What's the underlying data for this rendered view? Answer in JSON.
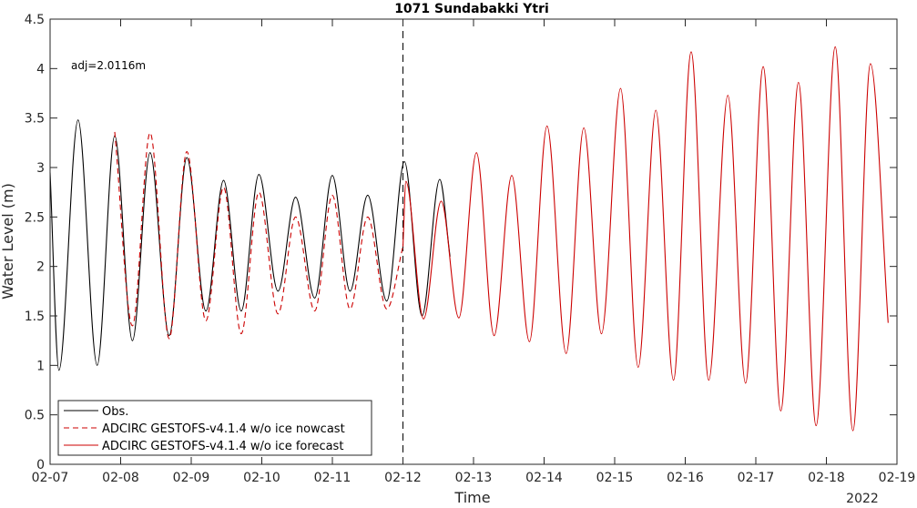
{
  "chart_data": {
    "type": "line",
    "title": "1071 Sundabakki Ytri",
    "xlabel": "Time",
    "ylabel": "Water Level (m)",
    "year_label": "2022",
    "annotation": "adj=2.0116m",
    "ylim": [
      0,
      4.5
    ],
    "yticks": [
      "0",
      "0.5",
      "1",
      "1.5",
      "2",
      "2.5",
      "3",
      "3.5",
      "4",
      "4.5"
    ],
    "xlim": [
      "02-07",
      "02-19"
    ],
    "xticks": [
      "02-07",
      "02-08",
      "02-09",
      "02-10",
      "02-11",
      "02-12",
      "02-13",
      "02-14",
      "02-15",
      "02-16",
      "02-17",
      "02-18",
      "02-19"
    ],
    "forecast_start": "02-12",
    "grid": false,
    "legend_position": "bottom-left",
    "series": [
      {
        "name": "Obs.",
        "color": "#000000",
        "style": "solid",
        "points": [
          [
            "02-07 00:00",
            2.95
          ],
          [
            "02-07 03:00",
            0.95
          ],
          [
            "02-07 09:30",
            3.48
          ],
          [
            "02-07 16:00",
            1.0
          ],
          [
            "02-07 22:00",
            3.32
          ],
          [
            "02-08 04:00",
            1.25
          ],
          [
            "02-08 10:00",
            3.15
          ],
          [
            "02-08 16:30",
            1.3
          ],
          [
            "02-08 22:30",
            3.1
          ],
          [
            "02-09 05:00",
            1.55
          ],
          [
            "02-09 11:00",
            2.87
          ],
          [
            "02-09 17:00",
            1.55
          ],
          [
            "02-09 23:00",
            2.93
          ],
          [
            "02-10 05:30",
            1.75
          ],
          [
            "02-10 11:30",
            2.7
          ],
          [
            "02-10 18:00",
            1.68
          ],
          [
            "02-10 23:59",
            2.92
          ],
          [
            "02-11 06:00",
            1.75
          ],
          [
            "02-11 12:00",
            2.72
          ],
          [
            "02-11 18:30",
            1.65
          ],
          [
            "02-12 00:30",
            3.06
          ],
          [
            "02-12 06:30",
            1.5
          ],
          [
            "02-12 12:30",
            2.88
          ],
          [
            "02-12 16:00",
            2.1
          ]
        ]
      },
      {
        "name": "ADCIRC GESTOFS-v4.1.4 w/o ice nowcast",
        "color": "#cc0000",
        "style": "dashed",
        "points": [
          [
            "02-07 22:00",
            3.36
          ],
          [
            "02-08 04:00",
            1.4
          ],
          [
            "02-08 10:00",
            3.35
          ],
          [
            "02-08 16:30",
            1.27
          ],
          [
            "02-08 22:30",
            3.16
          ],
          [
            "02-09 05:00",
            1.45
          ],
          [
            "02-09 11:00",
            2.8
          ],
          [
            "02-09 17:00",
            1.32
          ],
          [
            "02-09 23:00",
            2.75
          ],
          [
            "02-10 05:30",
            1.52
          ],
          [
            "02-10 11:30",
            2.5
          ],
          [
            "02-10 18:00",
            1.55
          ],
          [
            "02-10 23:59",
            2.72
          ],
          [
            "02-11 06:00",
            1.57
          ],
          [
            "02-11 12:00",
            2.5
          ],
          [
            "02-11 18:30",
            1.57
          ],
          [
            "02-12 00:00",
            2.2
          ]
        ]
      },
      {
        "name": "ADCIRC GESTOFS-v4.1.4 w/o ice forecast",
        "color": "#cc0000",
        "style": "solid",
        "points": [
          [
            "02-12 00:00",
            2.2
          ],
          [
            "02-12 01:00",
            2.86
          ],
          [
            "02-12 07:00",
            1.47
          ],
          [
            "02-12 13:00",
            2.66
          ],
          [
            "02-12 19:00",
            1.48
          ],
          [
            "02-13 01:00",
            3.15
          ],
          [
            "02-13 07:00",
            1.3
          ],
          [
            "02-13 13:00",
            2.92
          ],
          [
            "02-13 19:00",
            1.24
          ],
          [
            "02-14 01:00",
            3.42
          ],
          [
            "02-14 07:30",
            1.12
          ],
          [
            "02-14 13:30",
            3.4
          ],
          [
            "02-14 19:30",
            1.32
          ],
          [
            "02-15 02:00",
            3.8
          ],
          [
            "02-15 08:00",
            0.98
          ],
          [
            "02-15 14:00",
            3.58
          ],
          [
            "02-15 20:00",
            0.85
          ],
          [
            "02-16 02:00",
            4.17
          ],
          [
            "02-16 08:00",
            0.85
          ],
          [
            "02-16 14:30",
            3.73
          ],
          [
            "02-16 20:30",
            0.82
          ],
          [
            "02-17 02:30",
            4.02
          ],
          [
            "02-17 08:30",
            0.54
          ],
          [
            "02-17 14:30",
            3.86
          ],
          [
            "02-17 20:30",
            0.39
          ],
          [
            "02-18 03:00",
            4.22
          ],
          [
            "02-18 09:00",
            0.34
          ],
          [
            "02-18 15:00",
            4.05
          ],
          [
            "02-18 21:00",
            1.43
          ]
        ]
      }
    ]
  }
}
